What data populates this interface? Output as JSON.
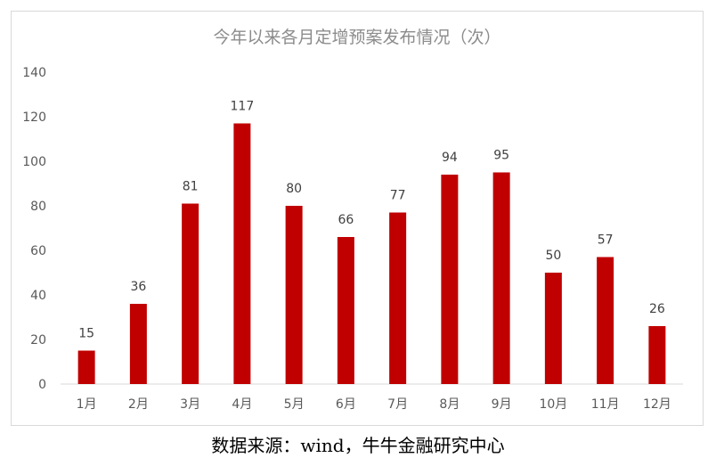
{
  "chart_data": {
    "type": "bar",
    "title": "今年以来各月定增预案发布情况（次）",
    "categories": [
      "1月",
      "2月",
      "3月",
      "4月",
      "5月",
      "6月",
      "7月",
      "8月",
      "9月",
      "10月",
      "11月",
      "12月"
    ],
    "values": [
      15,
      36,
      81,
      117,
      80,
      66,
      77,
      94,
      95,
      50,
      57,
      26
    ],
    "ylim": [
      0,
      140
    ],
    "yticks": [
      0,
      20,
      40,
      60,
      80,
      100,
      120,
      140
    ],
    "grid": false,
    "legend": "none",
    "bar_color": "#c00000"
  },
  "footer": {
    "source": "数据来源：wind，牛牛金融研究中心"
  }
}
